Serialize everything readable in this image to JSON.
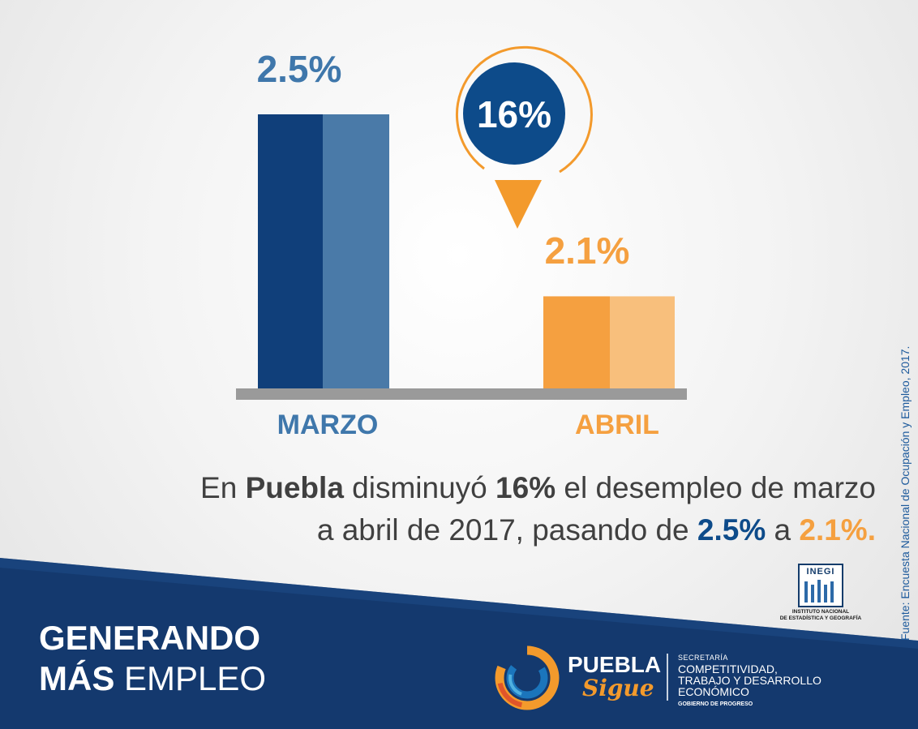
{
  "chart_data": {
    "type": "bar",
    "categories": [
      "MARZO",
      "ABRIL"
    ],
    "values": [
      2.5,
      2.1
    ],
    "value_labels": [
      "2.5%",
      "2.1%"
    ],
    "ylim": [
      0,
      2.8
    ],
    "grid": false,
    "colors": {
      "MARZO": {
        "dark": "#103f7a",
        "light": "#4a7aa8",
        "label": "#3f77ab"
      },
      "ABRIL": {
        "dark": "#f5a040",
        "light": "#f8bf7c",
        "label": "#f5a040"
      }
    },
    "callout": {
      "text": "16%"
    }
  },
  "caption": {
    "p1": "En ",
    "b1": "Puebla",
    "p2": " disminuyó ",
    "b2": "16%",
    "p3": " el desempleo de marzo",
    "p4": "a abril de 2017, pasando de ",
    "v1": "2.5%",
    "p5": " a ",
    "v2": "2.1%."
  },
  "source": "Fuente: Encuesta Nacional de Ocupación y Empleo, 2017.",
  "footer": {
    "line1": "GENERANDO",
    "line2_a": "MÁS ",
    "line2_b": "EMPLEO"
  },
  "inegi": {
    "name": "INEGI",
    "line1": "INSTITUTO NACIONAL",
    "line2": "DE ESTADÍSTICA Y GEOGRAFÍA"
  },
  "puebla": {
    "word1": "PUEBLA",
    "word2": "Sigue",
    "sec_l1": "SECRETARÍA",
    "sec_l2": "COMPETITIVIDAD,",
    "sec_l3": "TRABAJO Y DESARROLLO",
    "sec_l4": "ECONÓMICO",
    "sec_l5": "GOBIERNO DE PROGRESO"
  },
  "palette": {
    "navy": "#14396e",
    "orange": "#f39a2c",
    "gray_base": "#9a9a9a"
  }
}
